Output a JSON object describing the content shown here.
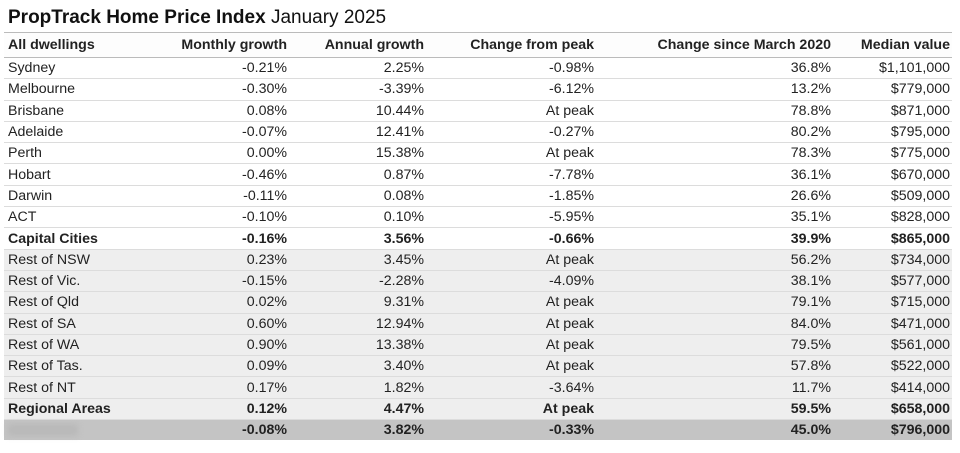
{
  "header": {
    "brand": "PropTrack Home Price Index",
    "period": "January 2025"
  },
  "columns": [
    "All dwellings",
    "Monthly growth",
    "Annual growth",
    "Change from peak",
    "Change since March 2020",
    "Median value"
  ],
  "capital_rows": [
    [
      "Sydney",
      "-0.21%",
      "2.25%",
      "-0.98%",
      "36.8%",
      "$1,101,000"
    ],
    [
      "Melbourne",
      "-0.30%",
      "-3.39%",
      "-6.12%",
      "13.2%",
      "$779,000"
    ],
    [
      "Brisbane",
      "0.08%",
      "10.44%",
      "At peak",
      "78.8%",
      "$871,000"
    ],
    [
      "Adelaide",
      "-0.07%",
      "12.41%",
      "-0.27%",
      "80.2%",
      "$795,000"
    ],
    [
      "Perth",
      "0.00%",
      "15.38%",
      "At peak",
      "78.3%",
      "$775,000"
    ],
    [
      "Hobart",
      "-0.46%",
      "0.87%",
      "-7.78%",
      "36.1%",
      "$670,000"
    ],
    [
      "Darwin",
      "-0.11%",
      "0.08%",
      "-1.85%",
      "26.6%",
      "$509,000"
    ],
    [
      "ACT",
      "-0.10%",
      "0.10%",
      "-5.95%",
      "35.1%",
      "$828,000"
    ]
  ],
  "capital_total": [
    "Capital Cities",
    "-0.16%",
    "3.56%",
    "-0.66%",
    "39.9%",
    "$865,000"
  ],
  "regional_rows": [
    [
      "Rest of NSW",
      "0.23%",
      "3.45%",
      "At peak",
      "56.2%",
      "$734,000"
    ],
    [
      "Rest of Vic.",
      "-0.15%",
      "-2.28%",
      "-4.09%",
      "38.1%",
      "$577,000"
    ],
    [
      "Rest of Qld",
      "0.02%",
      "9.31%",
      "At peak",
      "79.1%",
      "$715,000"
    ],
    [
      "Rest of SA",
      "0.60%",
      "12.94%",
      "At peak",
      "84.0%",
      "$471,000"
    ],
    [
      "Rest of WA",
      "0.90%",
      "13.38%",
      "At peak",
      "79.5%",
      "$561,000"
    ],
    [
      "Rest of Tas.",
      "0.09%",
      "3.40%",
      "At peak",
      "57.8%",
      "$522,000"
    ],
    [
      "Rest of NT",
      "0.17%",
      "1.82%",
      "-3.64%",
      "11.7%",
      "$414,000"
    ]
  ],
  "regional_total": [
    "Regional Areas",
    "0.12%",
    "4.47%",
    "At peak",
    "59.5%",
    "$658,000"
  ],
  "national_total": [
    "",
    "-0.08%",
    "3.82%",
    "-0.33%",
    "45.0%",
    "$796,000"
  ]
}
